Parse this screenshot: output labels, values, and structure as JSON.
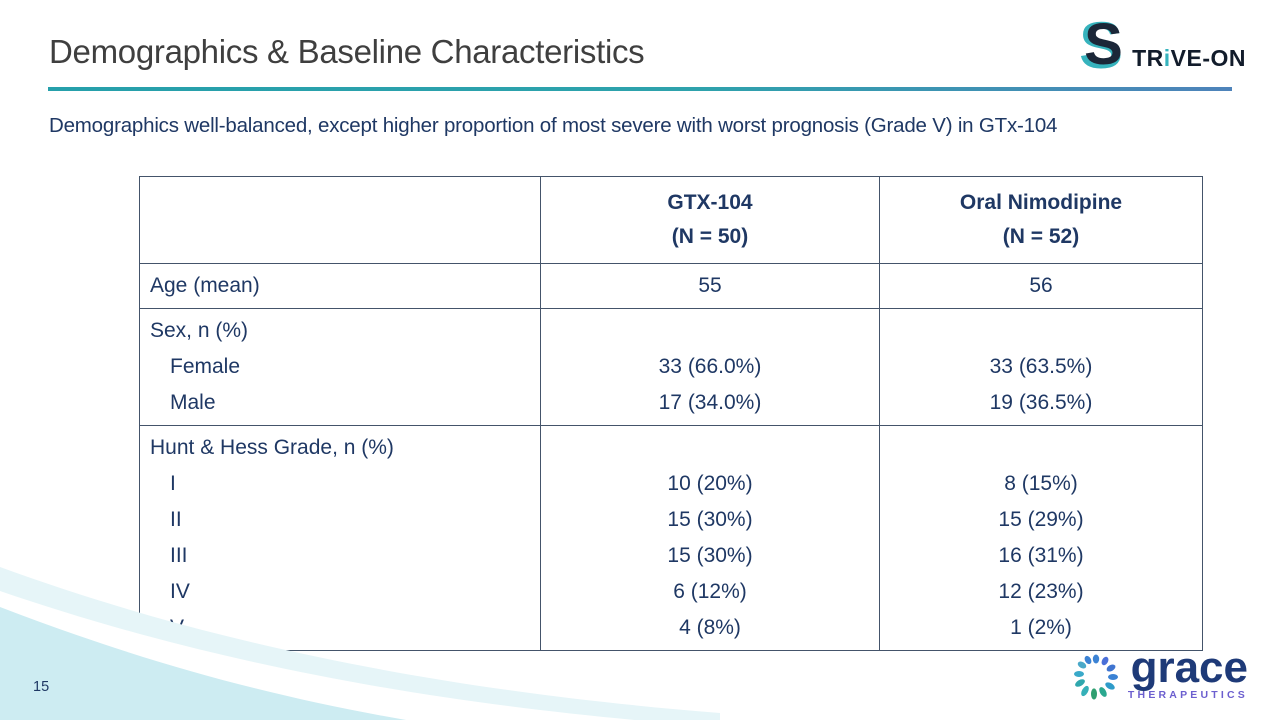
{
  "slide": {
    "title": "Demographics & Baseline Characteristics",
    "subtitle": "Demographics well-balanced, except higher proportion of most severe with worst prognosis (Grade V) in GTx-104",
    "page_number": "15"
  },
  "strive_logo": {
    "s_char": "S",
    "part1": "TR",
    "part2": "i",
    "part3": "VE-ON"
  },
  "grace_logo": {
    "name": "grace",
    "subtext": "THERAPEUTICS"
  },
  "table": {
    "header": {
      "col1": "",
      "col2_line1": "GTX-104",
      "col2_line2": "(N = 50)",
      "col3_line1": "Oral Nimodipine",
      "col3_line2": "(N = 52)"
    },
    "rows": [
      {
        "lines": [
          {
            "label": "Age (mean)",
            "gtx": "55",
            "oral": "56",
            "indent": false
          }
        ]
      },
      {
        "lines": [
          {
            "label": "Sex, n (%)",
            "gtx": "",
            "oral": "",
            "indent": false
          },
          {
            "label": "Female",
            "gtx": "33 (66.0%)",
            "oral": "33 (63.5%)",
            "indent": true
          },
          {
            "label": "Male",
            "gtx": "17 (34.0%)",
            "oral": "19 (36.5%)",
            "indent": true
          }
        ]
      },
      {
        "lines": [
          {
            "label": "Hunt & Hess Grade, n (%)",
            "gtx": "",
            "oral": "",
            "indent": false
          },
          {
            "label": "I",
            "gtx": "10 (20%)",
            "oral": "8 (15%)",
            "indent": true
          },
          {
            "label": "II",
            "gtx": "15 (30%)",
            "oral": "15 (29%)",
            "indent": true
          },
          {
            "label": "III",
            "gtx": "15 (30%)",
            "oral": "16 (31%)",
            "indent": true
          },
          {
            "label": "IV",
            "gtx": "6 (12%)",
            "oral": "12 (23%)",
            "indent": true
          },
          {
            "label": "V",
            "gtx": "4 (8%)",
            "oral": "1 (2%)",
            "indent": true
          }
        ]
      }
    ]
  },
  "colors": {
    "title_gray": "#3f3f3f",
    "navy_text": "#1f3864",
    "table_border": "#44546a",
    "divider_teal": "#26a0ab",
    "divider_blue": "#4e83ba",
    "logo_teal": "#36b3bd",
    "logo_dark": "#121c2b",
    "grace_navy": "#1e3a78",
    "grace_purple": "#6c5fcf",
    "wave_cyan": "#cdecf2",
    "wave_pale": "#e6f5f8"
  }
}
